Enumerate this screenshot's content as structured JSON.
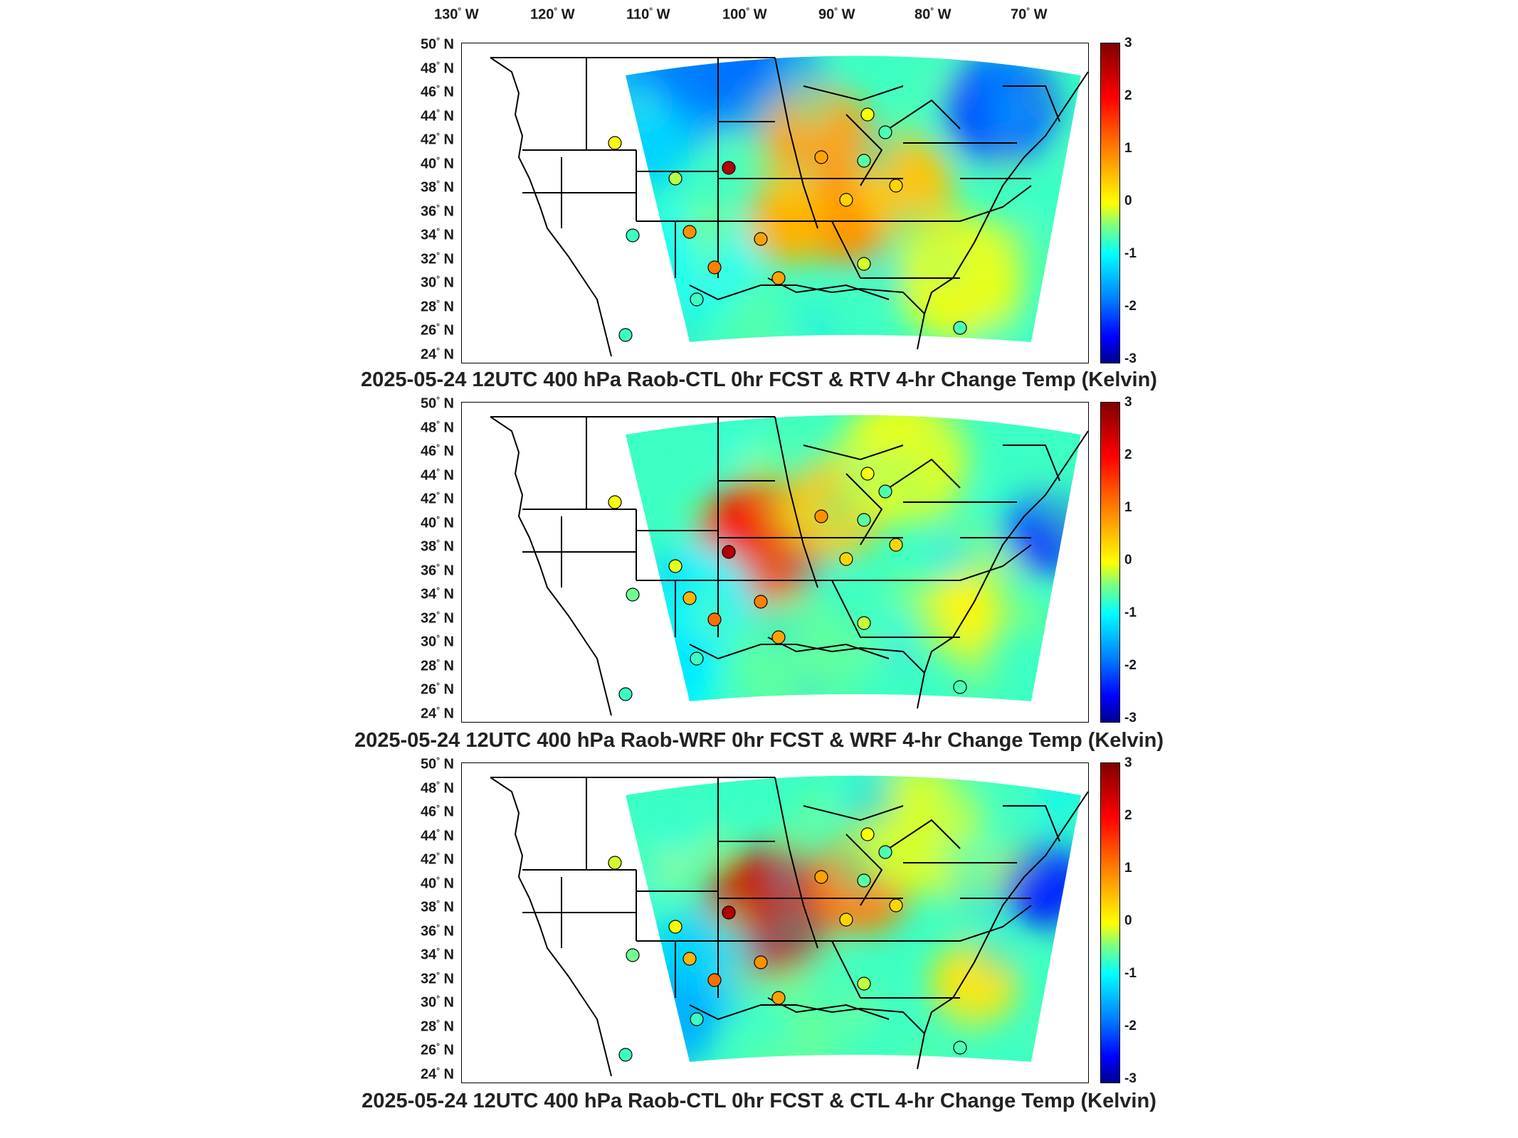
{
  "longitude_labels": [
    "130",
    "120",
    "110",
    "100",
    "90",
    "80",
    "70"
  ],
  "longitude_suffix": "W",
  "latitude_labels": [
    "50",
    "48",
    "46",
    "44",
    "42",
    "40",
    "38",
    "36",
    "34",
    "32",
    "30",
    "28",
    "26",
    "24"
  ],
  "latitude_suffix": "N",
  "degree_symbol": "°",
  "colorbar": {
    "ticks": [
      "3",
      "2",
      "1",
      "0",
      "-1",
      "-2",
      "-3"
    ],
    "range": [
      -3,
      3
    ],
    "colormap": "jet"
  },
  "panels": [
    {
      "title": "2025-05-24 12UTC 400 hPa Raob-CTL 0hr FCST & RTV 4-hr Change Temp (Kelvin)"
    },
    {
      "title": "2025-05-24 12UTC 400 hPa Raob-WRF 0hr FCST & WRF 4-hr Change Temp (Kelvin)"
    },
    {
      "title": "2025-05-24 12UTC 400 hPa Raob-CTL 0hr FCST & CTL 4-hr Change Temp (Kelvin)"
    }
  ]
}
